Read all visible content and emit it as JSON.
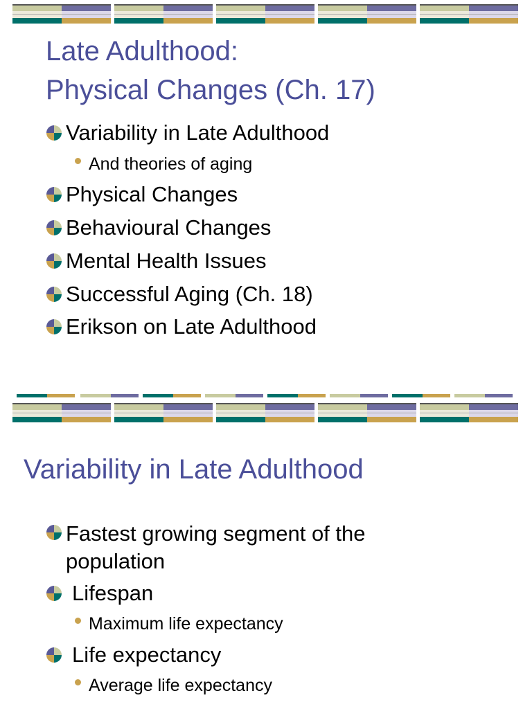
{
  "slides": [
    {
      "title": [
        "Late Adulthood:",
        "Physical Changes (Ch. 17)"
      ],
      "bullets": [
        {
          "text": "Variability in Late Adulthood",
          "sub": [
            "And theories of aging"
          ]
        },
        {
          "text": "Physical Changes"
        },
        {
          "text": "Behavioural Changes"
        },
        {
          "text": "Mental Health Issues"
        },
        {
          "text": "Successful Aging (Ch. 18)"
        },
        {
          "text": "Erikson on Late Adulthood"
        }
      ]
    },
    {
      "title": [
        "Variability in Late Adulthood"
      ],
      "bullets": [
        {
          "text": "Fastest growing segment of the population"
        },
        {
          "text": "Lifespan",
          "sub": [
            "Maximum life expectancy"
          ]
        },
        {
          "text": "Life expectancy",
          "sub": [
            "Average life expectancy"
          ]
        }
      ]
    }
  ]
}
